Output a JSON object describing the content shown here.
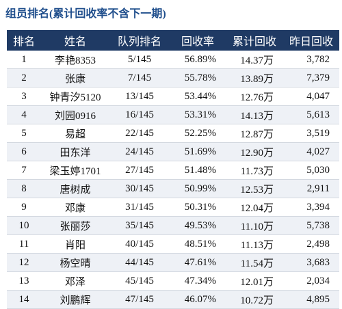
{
  "header": {
    "title": "组员排名(累计回收率不含下一期)"
  },
  "table": {
    "columns": [
      "排名",
      "姓名",
      "队列排名",
      "回收率",
      "累计回收",
      "昨日回收"
    ],
    "rows": [
      [
        "1",
        "李艳8353",
        "5/145",
        "56.89%",
        "14.37万",
        "3,782"
      ],
      [
        "2",
        "张康",
        "7/145",
        "55.78%",
        "13.89万",
        "7,379"
      ],
      [
        "3",
        "钟青汐5120",
        "13/145",
        "53.44%",
        "12.76万",
        "4,047"
      ],
      [
        "4",
        "刘园0916",
        "16/145",
        "53.31%",
        "14.13万",
        "5,613"
      ],
      [
        "5",
        "易超",
        "22/145",
        "52.25%",
        "12.87万",
        "3,519"
      ],
      [
        "6",
        "田东洋",
        "24/145",
        "51.69%",
        "12.90万",
        "4,027"
      ],
      [
        "7",
        "梁玉婷1701",
        "27/145",
        "51.48%",
        "11.73万",
        "5,030"
      ],
      [
        "8",
        "唐树成",
        "30/145",
        "50.99%",
        "12.53万",
        "2,911"
      ],
      [
        "9",
        "邓康",
        "31/145",
        "50.31%",
        "12.04万",
        "3,394"
      ],
      [
        "10",
        "张丽莎",
        "35/145",
        "49.53%",
        "11.10万",
        "5,738"
      ],
      [
        "11",
        "肖阳",
        "40/145",
        "48.51%",
        "11.13万",
        "2,498"
      ],
      [
        "12",
        "杨空晴",
        "44/145",
        "47.61%",
        "11.54万",
        "3,683"
      ],
      [
        "13",
        "邓泽",
        "45/145",
        "47.34%",
        "12.01万",
        "2,034"
      ],
      [
        "14",
        "刘鹏辉",
        "47/145",
        "46.07%",
        "10.72万",
        "4,895"
      ]
    ]
  }
}
